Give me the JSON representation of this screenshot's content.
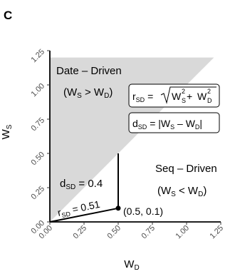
{
  "panel_label": "C",
  "chart_data": {
    "type": "scatter",
    "xlabel": "W",
    "xlabel_sub": "D",
    "ylabel": "W",
    "ylabel_sub": "S",
    "xlim": [
      0,
      1.25
    ],
    "ylim": [
      0,
      1.25
    ],
    "ticks": [
      0.0,
      0.25,
      0.5,
      0.75,
      1.0,
      1.25
    ],
    "tick_labels": [
      "0.00",
      "0.25",
      "0.50",
      "0.75",
      "1.00",
      "1.25"
    ],
    "grid": false,
    "shaded_region": {
      "polygon": [
        [
          0,
          0
        ],
        [
          1.2,
          1.2
        ],
        [
          0,
          1.2
        ]
      ],
      "color": "#d9d9d9",
      "label_line1": "Date – Driven",
      "label_line2_main": "(W",
      "label_line2_sub1": "S",
      "label_line2_op": " > W",
      "label_line2_sub2": "D",
      "label_line2_close": ")"
    },
    "unshaded_region": {
      "label_line1": "Seq – Driven",
      "label_line2_main": "(W",
      "label_line2_sub1": "S",
      "label_line2_op": " < W",
      "label_line2_sub2": "D",
      "label_line2_close": ")"
    },
    "point": {
      "x": 0.5,
      "y": 0.1,
      "label": "(0.5, 0.1)"
    },
    "annotations": {
      "d_sd_value": "d",
      "d_sd_sub": "SD",
      "d_sd_rest": " = 0.4",
      "r_sd_value": "r",
      "r_sd_sub": "SD",
      "r_sd_rest": " = 0.51"
    },
    "formulas": {
      "r_formula_left": "r",
      "r_formula_left_sub": "SD",
      "r_formula_eq": " = ",
      "r_term1": "W",
      "r_term1_sup": "2",
      "r_term1_sub": "S",
      "r_plus": " + ",
      "r_term2": "W",
      "r_term2_sup": "2",
      "r_term2_sub": "D",
      "d_formula_left": "d",
      "d_formula_left_sub": "SD",
      "d_formula_eq": " = |W",
      "d_formula_sub1": "S",
      "d_formula_minus": " – W",
      "d_formula_sub2": "D",
      "d_formula_close": "|"
    }
  }
}
